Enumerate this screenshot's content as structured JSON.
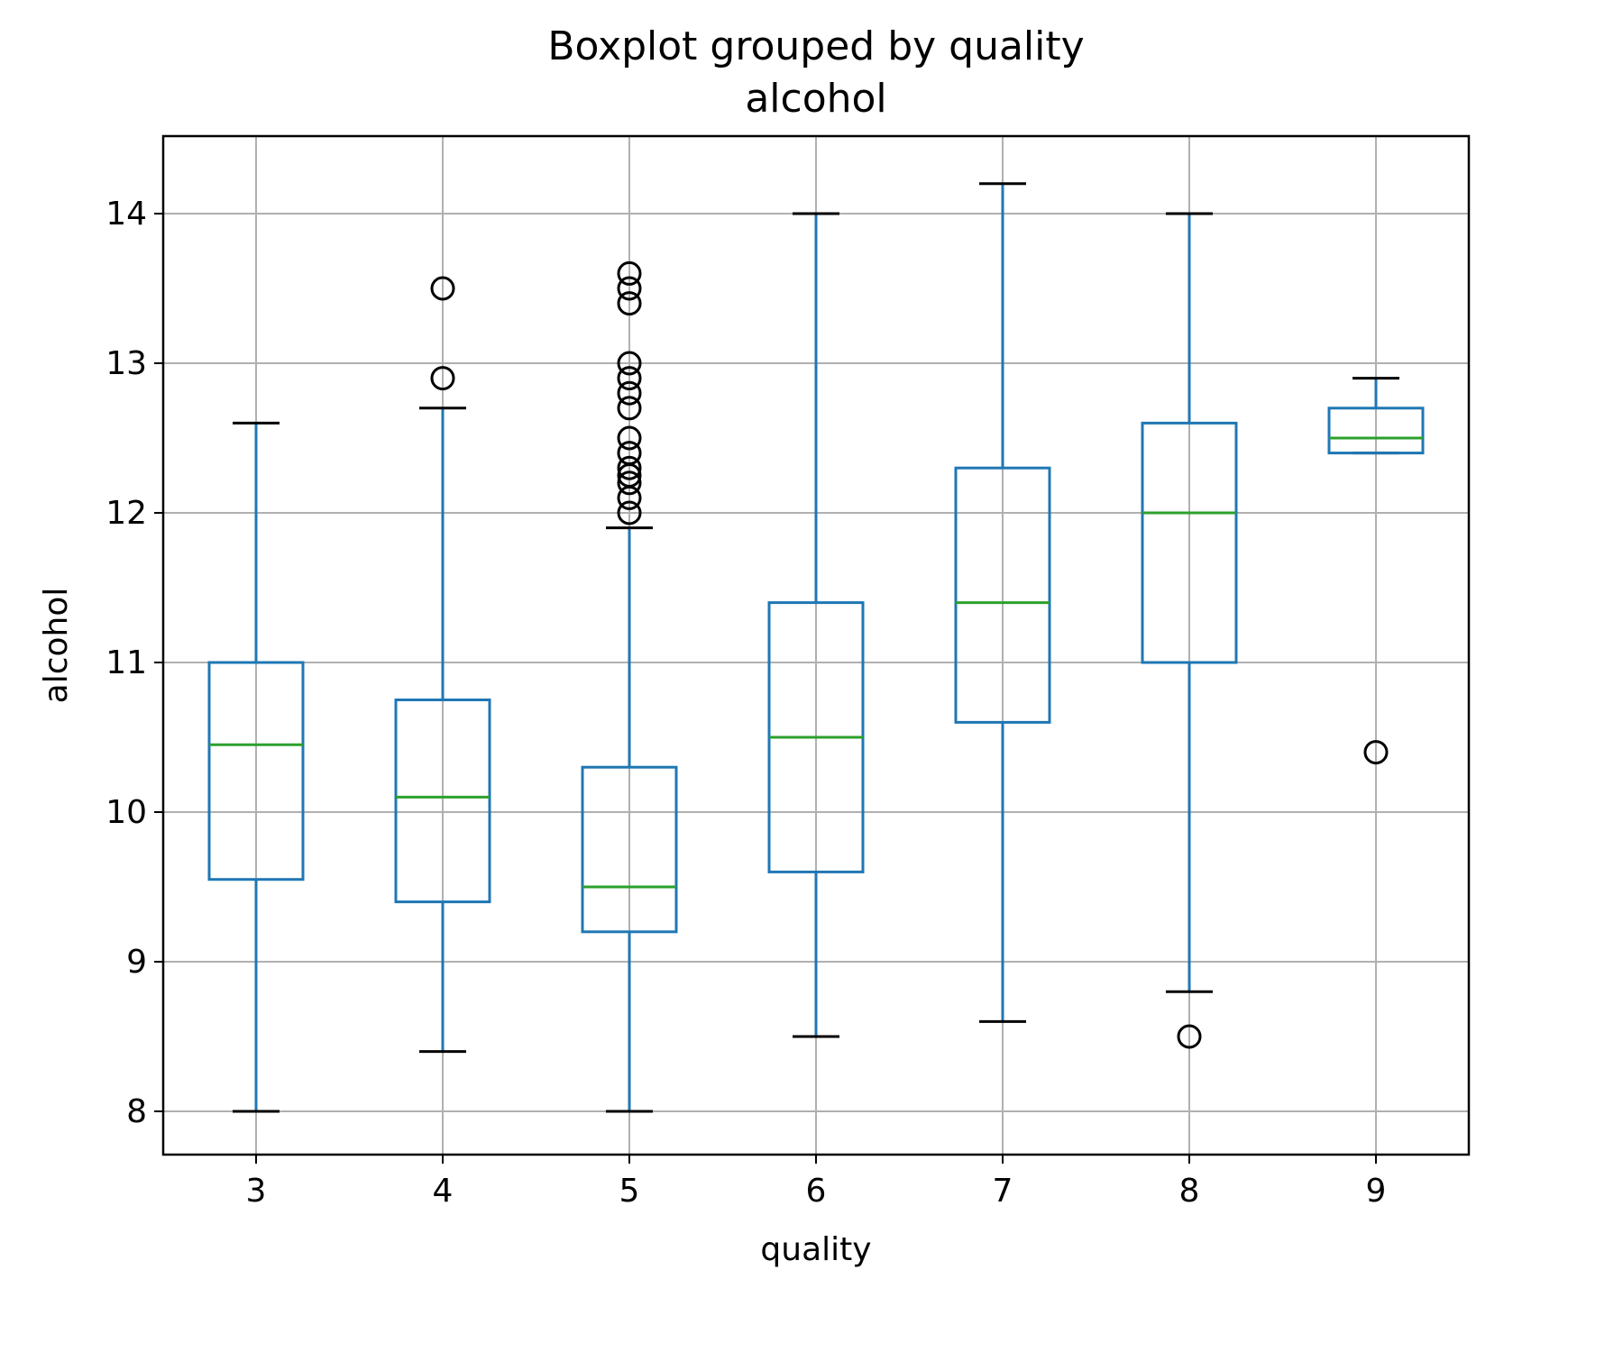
{
  "chart_data": {
    "type": "box",
    "title": "Boxplot grouped by quality",
    "subtitle": "alcohol",
    "xlabel": "quality",
    "ylabel": "alcohol",
    "categories": [
      "3",
      "4",
      "5",
      "6",
      "7",
      "8",
      "9"
    ],
    "yticks": [
      8,
      9,
      10,
      11,
      12,
      13,
      14
    ],
    "ylim": [
      7.7,
      14.5
    ],
    "grid": true,
    "boxes": [
      {
        "category": "3",
        "whisker_low": 8.0,
        "q1": 9.55,
        "median": 10.45,
        "q3": 11.0,
        "whisker_high": 12.6,
        "outliers": []
      },
      {
        "category": "4",
        "whisker_low": 8.4,
        "q1": 9.4,
        "median": 10.1,
        "q3": 10.75,
        "whisker_high": 12.7,
        "outliers": [
          12.9,
          13.5
        ]
      },
      {
        "category": "5",
        "whisker_low": 8.0,
        "q1": 9.2,
        "median": 9.5,
        "q3": 10.3,
        "whisker_high": 11.9,
        "outliers": [
          12.0,
          12.1,
          12.2,
          12.25,
          12.3,
          12.4,
          12.5,
          12.7,
          12.8,
          12.9,
          13.0,
          13.4,
          13.5,
          13.6
        ]
      },
      {
        "category": "6",
        "whisker_low": 8.5,
        "q1": 9.6,
        "median": 10.5,
        "q3": 11.4,
        "whisker_high": 14.0,
        "outliers": []
      },
      {
        "category": "7",
        "whisker_low": 8.6,
        "q1": 10.6,
        "median": 11.4,
        "q3": 12.3,
        "whisker_high": 14.2,
        "outliers": []
      },
      {
        "category": "8",
        "whisker_low": 8.8,
        "q1": 11.0,
        "median": 12.0,
        "q3": 12.6,
        "whisker_high": 14.0,
        "outliers": [
          8.5
        ]
      },
      {
        "category": "9",
        "whisker_low": 12.4,
        "q1": 12.4,
        "median": 12.5,
        "q3": 12.7,
        "whisker_high": 12.9,
        "outliers": [
          10.4
        ]
      }
    ],
    "colors": {
      "box": "#1f77b4",
      "median": "#2ca02c",
      "cap": "#000000",
      "outlier": "#000000",
      "grid": "#b0b0b0"
    }
  }
}
